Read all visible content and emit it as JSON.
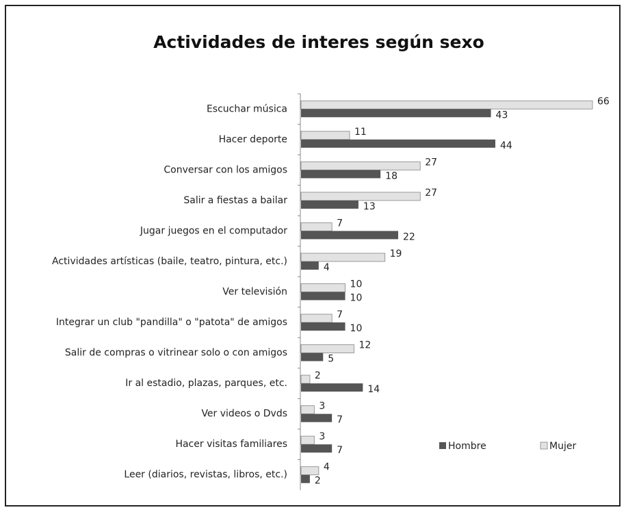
{
  "chart_data": {
    "type": "hbar",
    "title": "Actividades de interes según sexo",
    "categories": [
      "Escuchar música",
      "Hacer deporte",
      "Conversar con los amigos",
      "Salir a fiestas a bailar",
      "Jugar juegos en el computador",
      "Actividades artísticas (baile, teatro, pintura, etc.)",
      "Ver televisión",
      "Integrar un club \"pandilla\" o \"patota\" de amigos",
      "Salir de compras o vitrinear solo o con amigos",
      "Ir al estadio, plazas, parques, etc.",
      "Ver videos o Dvds",
      "Hacer visitas familiares",
      "Leer (diarios, revistas, libros, etc.)"
    ],
    "series": [
      {
        "name": "Hombre",
        "color": "#555555",
        "values": [
          43,
          44,
          18,
          13,
          22,
          4,
          10,
          10,
          5,
          14,
          7,
          7,
          2
        ]
      },
      {
        "name": "Mujer",
        "color": "#e2e2e2",
        "values": [
          66,
          11,
          27,
          27,
          7,
          19,
          10,
          7,
          12,
          2,
          3,
          3,
          4
        ]
      }
    ],
    "legend": "lower right"
  }
}
